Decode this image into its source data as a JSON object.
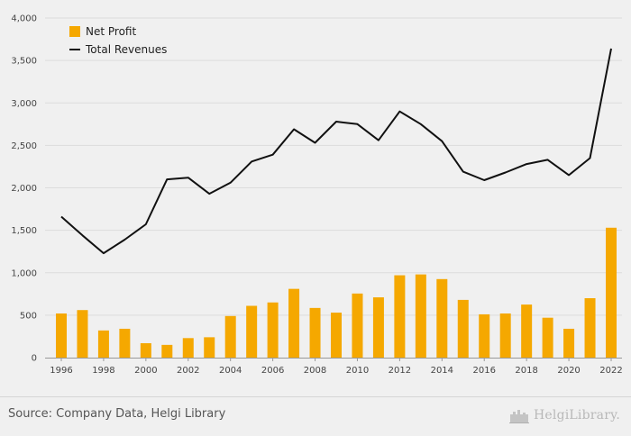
{
  "chart_data": {
    "type": "bar+line",
    "x": [
      1996,
      1997,
      1998,
      1999,
      2000,
      2001,
      2002,
      2003,
      2004,
      2005,
      2006,
      2007,
      2008,
      2009,
      2010,
      2011,
      2012,
      2013,
      2014,
      2015,
      2016,
      2017,
      2018,
      2019,
      2020,
      2021,
      2022
    ],
    "x_tick_labels": [
      "1996",
      "1998",
      "2000",
      "2002",
      "2004",
      "2006",
      "2008",
      "2010",
      "2012",
      "2014",
      "2016",
      "2018",
      "2020",
      "2022"
    ],
    "y_tick_labels": [
      "0",
      "500",
      "1,000",
      "1,500",
      "2,000",
      "2,500",
      "3,000",
      "3,500",
      "4,000"
    ],
    "ylim": [
      0,
      4000
    ],
    "series": [
      {
        "name": "Net Profit",
        "kind": "bar",
        "color": "#f5a800",
        "values": [
          520,
          560,
          320,
          340,
          170,
          150,
          230,
          240,
          490,
          610,
          650,
          810,
          585,
          530,
          755,
          710,
          970,
          980,
          925,
          680,
          510,
          520,
          625,
          470,
          340,
          700,
          1530
        ]
      },
      {
        "name": "Total Revenues",
        "kind": "line",
        "color": "#111111",
        "values": [
          1660,
          1440,
          1230,
          1390,
          1570,
          2100,
          2120,
          1930,
          2060,
          2310,
          2390,
          2690,
          2530,
          2780,
          2750,
          2560,
          2900,
          2750,
          2550,
          2190,
          2090,
          2180,
          2280,
          2330,
          2150,
          2350,
          3640
        ]
      }
    ],
    "legend": [
      "Net Profit",
      "Total Revenues"
    ],
    "legend_position": "top-left"
  },
  "footer": {
    "source": "Source: Company Data, Helgi Library",
    "brand": "HelgiLibrary."
  },
  "icons": {
    "brand_logo": "helgi-library-logo-icon"
  }
}
